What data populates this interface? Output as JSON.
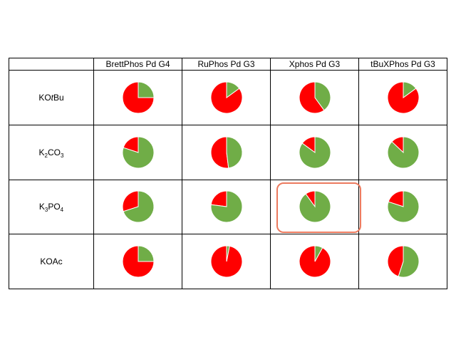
{
  "colors": {
    "yield": "#70ad47",
    "remaining": "#ff0000",
    "highlight": "#ec7a5e"
  },
  "chart_data": {
    "type": "pie",
    "columns": [
      "BrettPhos Pd G4",
      "RuPhos Pd G3",
      "Xphos Pd G3",
      "tBuXPhos Pd G3"
    ],
    "rows": [
      {
        "label": "KOtBu",
        "parts": [
          {
            "text": "KO"
          },
          {
            "text": "t",
            "style": "italic"
          },
          {
            "text": "Bu"
          }
        ]
      },
      {
        "label": "K2CO3",
        "parts": [
          {
            "text": "K"
          },
          {
            "text": "2",
            "style": "sub"
          },
          {
            "text": "CO"
          },
          {
            "text": "3",
            "style": "sub"
          }
        ]
      },
      {
        "label": "K3PO4",
        "parts": [
          {
            "text": "K"
          },
          {
            "text": "3",
            "style": "sub"
          },
          {
            "text": "PO"
          },
          {
            "text": "4",
            "style": "sub"
          }
        ]
      },
      {
        "label": "KOAc",
        "parts": [
          {
            "text": "KOAc"
          }
        ]
      }
    ],
    "green_fraction": [
      [
        0.25,
        0.15,
        0.4,
        0.15
      ],
      [
        0.8,
        0.48,
        0.85,
        0.87
      ],
      [
        0.7,
        0.77,
        0.9,
        0.8
      ],
      [
        0.25,
        0.03,
        0.08,
        0.55
      ]
    ],
    "highlighted_cell": {
      "row": 2,
      "column": 2
    }
  }
}
